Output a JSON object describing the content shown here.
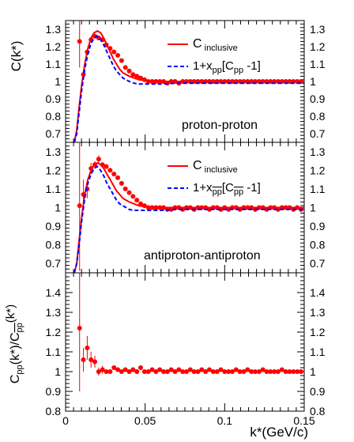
{
  "chart_data": [
    {
      "type": "scatter",
      "panel": "top",
      "ylabel": "C(k*)",
      "xlim": [
        0,
        0.15
      ],
      "ylim": [
        0.65,
        1.35
      ],
      "yticks": [
        "0.7",
        "0.8",
        "0.9",
        "1",
        "1.1",
        "1.2",
        "1.3"
      ],
      "ytick_values": [
        0.7,
        0.8,
        0.9,
        1,
        1.1,
        1.2,
        1.3
      ],
      "annotation": "proton-proton",
      "legend": {
        "position": "top-right",
        "entries": [
          {
            "label": "C",
            "sub": "inclusive",
            "style": "red-solid"
          },
          {
            "label": "1+x",
            "sub": "pp",
            "mid": "[C",
            "sub2": "pp",
            "tail": " -1]",
            "style": "blue-dashed"
          }
        ]
      },
      "series": [
        {
          "name": "data",
          "style": "red-points",
          "x": [
            0.0088,
            0.0112,
            0.0136,
            0.016,
            0.0184,
            0.0208,
            0.0232,
            0.0256,
            0.028,
            0.0304,
            0.0328,
            0.0352,
            0.0376,
            0.04,
            0.0424,
            0.0448,
            0.0472,
            0.0496,
            0.052,
            0.0544,
            0.0568,
            0.0592,
            0.0616,
            0.064,
            0.0664,
            0.0688,
            0.0712,
            0.0736,
            0.076,
            0.0784,
            0.0808,
            0.0832,
            0.0856,
            0.088,
            0.0904,
            0.0928,
            0.0952,
            0.0976,
            0.1,
            0.1024,
            0.1048,
            0.1072,
            0.1096,
            0.112,
            0.1144,
            0.1168,
            0.1192,
            0.1216,
            0.124,
            0.1264,
            0.1288,
            0.1312,
            0.1336,
            0.136,
            0.1384,
            0.1408,
            0.1432,
            0.1456,
            0.148
          ],
          "y": [
            1.23,
            1.04,
            1.17,
            1.24,
            1.26,
            1.25,
            1.24,
            1.21,
            1.19,
            1.17,
            1.15,
            1.12,
            1.08,
            1.06,
            1.04,
            1.03,
            1.02,
            1.01,
            1.0,
            1.0,
            1.0,
            1.0,
            1.0,
            0.99,
            1.0,
            1.0,
            0.99,
            1.0,
            1.0,
            1.0,
            1.0,
            1.0,
            1.0,
            1.0,
            1.0,
            1.0,
            1.0,
            1.0,
            1.0,
            1.0,
            1.0,
            1.0,
            1.0,
            1.0,
            1.0,
            1.0,
            1.0,
            1.0,
            1.0,
            1.0,
            1.0,
            1.0,
            1.0,
            1.0,
            1.0,
            1.0,
            1.0,
            1.0,
            1.0
          ],
          "yerr": [
            0.15,
            0.02,
            0.01,
            0.01,
            0.01,
            0.01,
            0.01,
            0,
            0,
            0,
            0,
            0,
            0,
            0,
            0,
            0,
            0,
            0,
            0,
            0,
            0,
            0,
            0,
            0,
            0,
            0,
            0,
            0,
            0,
            0,
            0,
            0,
            0,
            0,
            0,
            0,
            0,
            0,
            0,
            0,
            0,
            0,
            0,
            0,
            0,
            0,
            0,
            0,
            0,
            0,
            0,
            0,
            0,
            0,
            0,
            0,
            0,
            0,
            0
          ]
        },
        {
          "name": "C inclusive",
          "style": "red-solid",
          "x": [
            0.0055,
            0.007,
            0.0085,
            0.01,
            0.012,
            0.014,
            0.016,
            0.018,
            0.02,
            0.022,
            0.024,
            0.026,
            0.028,
            0.03,
            0.032,
            0.034,
            0.036,
            0.038,
            0.04,
            0.043,
            0.046,
            0.05,
            0.055,
            0.06,
            0.07,
            0.08,
            0.1,
            0.12,
            0.15
          ],
          "y": [
            0.65,
            0.72,
            0.85,
            0.97,
            1.1,
            1.19,
            1.25,
            1.28,
            1.29,
            1.28,
            1.25,
            1.21,
            1.17,
            1.13,
            1.1,
            1.07,
            1.05,
            1.04,
            1.03,
            1.02,
            1.01,
            1.005,
            1.0,
            1.0,
            1.0,
            1.0,
            1.0,
            1.0,
            1.0
          ]
        },
        {
          "name": "1+x_pp[C_pp-1]",
          "style": "blue-dashed",
          "x": [
            0.0055,
            0.007,
            0.0085,
            0.01,
            0.012,
            0.014,
            0.016,
            0.018,
            0.02,
            0.022,
            0.024,
            0.026,
            0.028,
            0.03,
            0.032,
            0.034,
            0.036,
            0.038,
            0.04,
            0.043,
            0.046,
            0.05,
            0.055,
            0.06,
            0.07,
            0.08,
            0.1,
            0.12,
            0.15
          ],
          "y": [
            0.65,
            0.7,
            0.82,
            0.94,
            1.07,
            1.16,
            1.22,
            1.25,
            1.26,
            1.24,
            1.21,
            1.17,
            1.13,
            1.09,
            1.06,
            1.04,
            1.02,
            1.01,
            1.0,
            0.99,
            0.985,
            0.985,
            0.985,
            0.985,
            0.99,
            0.99,
            0.99,
            0.99,
            0.99
          ]
        }
      ]
    },
    {
      "type": "scatter",
      "panel": "middle",
      "ylabel": "",
      "xlim": [
        0,
        0.15
      ],
      "ylim": [
        0.65,
        1.35
      ],
      "yticks": [
        "0.7",
        "0.8",
        "0.9",
        "1",
        "1.1",
        "1.2",
        "1.3"
      ],
      "ytick_values": [
        0.7,
        0.8,
        0.9,
        1,
        1.1,
        1.2,
        1.3
      ],
      "annotation": "antiproton-antiproton",
      "legend": {
        "position": "top-right",
        "entries": [
          {
            "label": "C",
            "sub": "inclusive",
            "style": "red-solid"
          },
          {
            "label": "1+x",
            "sub": "pp",
            "mid": "[C",
            "sub2": "pp",
            "tail": " -1]",
            "style": "blue-dashed",
            "overline": true
          }
        ]
      },
      "series": [
        {
          "name": "data",
          "style": "red-points",
          "x": [
            0.0088,
            0.0112,
            0.0136,
            0.016,
            0.0184,
            0.0208,
            0.0232,
            0.0256,
            0.028,
            0.0304,
            0.0328,
            0.0352,
            0.0376,
            0.04,
            0.0424,
            0.0448,
            0.0472,
            0.0496,
            0.052,
            0.0544,
            0.0568,
            0.0592,
            0.0616,
            0.064,
            0.0664,
            0.0688,
            0.0712,
            0.0736,
            0.076,
            0.0784,
            0.0808,
            0.0832,
            0.0856,
            0.088,
            0.0904,
            0.0928,
            0.0952,
            0.0976,
            0.1,
            0.1024,
            0.1048,
            0.1072,
            0.1096,
            0.112,
            0.1144,
            0.1168,
            0.1192,
            0.1216,
            0.124,
            0.1264,
            0.1288,
            0.1312,
            0.1336,
            0.136,
            0.1384,
            0.1408,
            0.1432,
            0.1456,
            0.148
          ],
          "y": [
            1.01,
            1.07,
            1.1,
            1.21,
            1.23,
            1.26,
            1.23,
            1.22,
            1.2,
            1.18,
            1.16,
            1.13,
            1.1,
            1.08,
            1.06,
            1.04,
            1.02,
            1.01,
            1.0,
            1.0,
            1.0,
            1.0,
            1.0,
            0.99,
            0.99,
            1.0,
            1.0,
            0.99,
            1.0,
            1.0,
            0.99,
            1.0,
            1.0,
            1.0,
            0.99,
            1.0,
            1.0,
            0.99,
            1.0,
            0.99,
            1.0,
            1.0,
            0.99,
            1.0,
            1.0,
            1.0,
            0.99,
            1.0,
            1.0,
            0.99,
            1.0,
            1.0,
            0.99,
            1.0,
            1.0,
            1.0,
            0.99,
            1.0,
            0.99
          ],
          "yerr": [
            0.35,
            0.08,
            0.05,
            0.03,
            0.02,
            0.02,
            0.01,
            0.01,
            0,
            0,
            0,
            0,
            0,
            0,
            0,
            0,
            0,
            0,
            0,
            0,
            0,
            0,
            0,
            0,
            0,
            0,
            0,
            0,
            0,
            0,
            0,
            0,
            0,
            0,
            0,
            0,
            0,
            0,
            0,
            0,
            0,
            0,
            0,
            0,
            0,
            0,
            0,
            0,
            0,
            0,
            0,
            0,
            0,
            0,
            0,
            0,
            0,
            0,
            0
          ]
        },
        {
          "name": "C inclusive",
          "style": "red-solid",
          "x": [
            0.0055,
            0.007,
            0.0085,
            0.01,
            0.012,
            0.014,
            0.016,
            0.018,
            0.02,
            0.022,
            0.024,
            0.026,
            0.028,
            0.03,
            0.032,
            0.034,
            0.036,
            0.038,
            0.04,
            0.043,
            0.046,
            0.05,
            0.055,
            0.06,
            0.07,
            0.08,
            0.1,
            0.12,
            0.15
          ],
          "y": [
            0.65,
            0.7,
            0.82,
            0.94,
            1.07,
            1.15,
            1.2,
            1.23,
            1.24,
            1.23,
            1.21,
            1.18,
            1.15,
            1.12,
            1.09,
            1.07,
            1.05,
            1.04,
            1.03,
            1.02,
            1.01,
            1.005,
            1.0,
            1.0,
            1.0,
            1.0,
            1.0,
            1.0,
            1.0
          ]
        },
        {
          "name": "1+x_pp[C_pp-1] (antiproton)",
          "style": "blue-dashed",
          "x": [
            0.0055,
            0.007,
            0.0085,
            0.01,
            0.012,
            0.014,
            0.016,
            0.018,
            0.02,
            0.022,
            0.024,
            0.026,
            0.028,
            0.03,
            0.032,
            0.034,
            0.036,
            0.038,
            0.04,
            0.043,
            0.046,
            0.05,
            0.055,
            0.06,
            0.07,
            0.08,
            0.1,
            0.12,
            0.15
          ],
          "y": [
            0.65,
            0.7,
            0.8,
            0.92,
            1.05,
            1.13,
            1.18,
            1.21,
            1.22,
            1.2,
            1.17,
            1.13,
            1.1,
            1.07,
            1.04,
            1.02,
            1.01,
            1.0,
            0.99,
            0.985,
            0.985,
            0.985,
            0.985,
            0.985,
            0.99,
            0.99,
            0.99,
            0.99,
            0.99
          ]
        }
      ]
    },
    {
      "type": "scatter",
      "panel": "bottom",
      "ylabel": "C_pp(k*)/C_pp(k*)",
      "xlabel": "k*(GeV/c)",
      "xlim": [
        0,
        0.15
      ],
      "ylim": [
        0.8,
        1.5
      ],
      "xticks": [
        "0",
        "0.05",
        "0.1",
        "0.15"
      ],
      "xtick_values": [
        0,
        0.05,
        0.1,
        0.15
      ],
      "yticks": [
        "0.8",
        "0.9",
        "1",
        "1.1",
        "1.2",
        "1.3",
        "1.4"
      ],
      "ytick_values": [
        0.8,
        0.9,
        1,
        1.1,
        1.2,
        1.3,
        1.4
      ],
      "series": [
        {
          "name": "ratio",
          "style": "red-points",
          "x": [
            0.0088,
            0.0112,
            0.0136,
            0.016,
            0.0184,
            0.0208,
            0.0232,
            0.0256,
            0.028,
            0.0304,
            0.0328,
            0.0352,
            0.0376,
            0.04,
            0.0424,
            0.0448,
            0.0472,
            0.0496,
            0.052,
            0.0544,
            0.0568,
            0.0592,
            0.0616,
            0.064,
            0.0664,
            0.0688,
            0.0712,
            0.0736,
            0.076,
            0.0784,
            0.0808,
            0.0832,
            0.0856,
            0.088,
            0.0904,
            0.0928,
            0.0952,
            0.0976,
            0.1,
            0.1024,
            0.1048,
            0.1072,
            0.1096,
            0.112,
            0.1144,
            0.1168,
            0.1192,
            0.1216,
            0.124,
            0.1264,
            0.1288,
            0.1312,
            0.1336,
            0.136,
            0.1384,
            0.1408,
            0.1432,
            0.1456,
            0.148
          ],
          "y": [
            1.22,
            1.06,
            1.12,
            1.06,
            1.05,
            1.0,
            1.01,
            1.0,
            1.0,
            1.02,
            1.01,
            1.0,
            1.01,
            1.0,
            1.01,
            1.0,
            1.02,
            1.0,
            1.0,
            1.01,
            1.0,
            1.01,
            1.0,
            1.0,
            1.01,
            1.0,
            1.01,
            1.0,
            1.0,
            1.01,
            1.0,
            1.0,
            1.01,
            1.0,
            1.01,
            1.0,
            1.0,
            1.01,
            1.0,
            1.0,
            1.0,
            1.01,
            1.0,
            1.0,
            1.01,
            1.0,
            1.0,
            1.0,
            1.01,
            1.0,
            1.0,
            1.0,
            1.0,
            1.01,
            1.0,
            1.0,
            1.0,
            1.0,
            1.0
          ],
          "yerr": [
            0.32,
            0.06,
            0.06,
            0.04,
            0.03,
            0.02,
            0.02,
            0.01,
            0.01,
            0,
            0,
            0,
            0,
            0,
            0,
            0,
            0,
            0,
            0,
            0,
            0,
            0,
            0,
            0,
            0,
            0,
            0,
            0,
            0,
            0,
            0,
            0,
            0,
            0,
            0,
            0,
            0,
            0,
            0,
            0,
            0,
            0,
            0,
            0,
            0,
            0,
            0,
            0,
            0,
            0,
            0,
            0,
            0,
            0,
            0,
            0,
            0,
            0,
            0
          ]
        }
      ]
    }
  ],
  "colors": {
    "data": "#ff0000",
    "inclusive": "#ff0000",
    "model": "#0000ff",
    "axis": "#000000"
  }
}
